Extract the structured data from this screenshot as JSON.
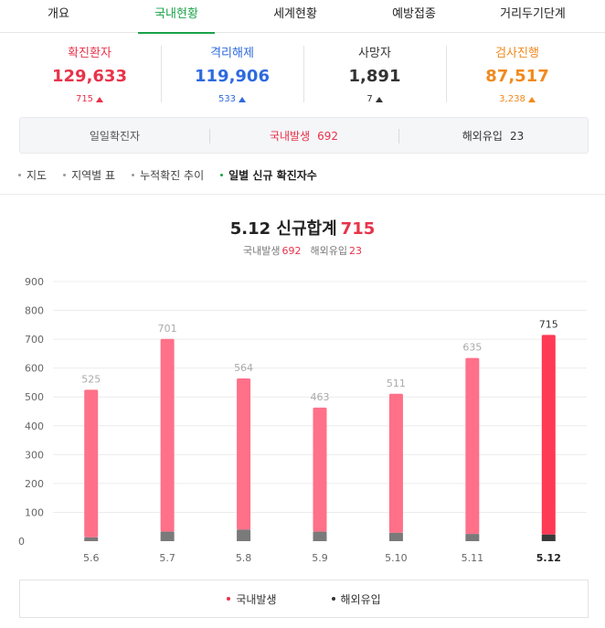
{
  "tabs": [
    {
      "label": "개요",
      "active": false
    },
    {
      "label": "국내현황",
      "active": true
    },
    {
      "label": "세계현황",
      "active": false
    },
    {
      "label": "예방접종",
      "active": false
    },
    {
      "label": "거리두기단계",
      "active": false
    }
  ],
  "stats": {
    "confirmed": {
      "label": "확진환자",
      "value": "129,633",
      "change": "715",
      "color": "#e8334a"
    },
    "released": {
      "label": "격리해제",
      "value": "119,906",
      "change": "533",
      "color": "#2e6adf"
    },
    "deaths": {
      "label": "사망자",
      "value": "1,891",
      "change": "7",
      "color": "#333333"
    },
    "testing": {
      "label": "검사진행",
      "value": "87,517",
      "change": "3,238",
      "color": "#f08a1d"
    }
  },
  "daily": {
    "label": "일일확진자",
    "domestic_label": "국내발생",
    "domestic_value": "692",
    "overseas_label": "해외유입",
    "overseas_value": "23"
  },
  "subnav": [
    {
      "label": "지도",
      "active": false
    },
    {
      "label": "지역별 표",
      "active": false
    },
    {
      "label": "누적확진 추이",
      "active": false
    },
    {
      "label": "일별 신규 확진자수",
      "active": true
    }
  ],
  "chart_header": {
    "title": "5.12 신규합계",
    "total": "715",
    "domestic_label": "국내발생",
    "domestic_value": "692",
    "overseas_label": "해외유입",
    "overseas_value": "23"
  },
  "chart_data": {
    "type": "bar",
    "stacked": true,
    "categories": [
      "5.6",
      "5.7",
      "5.8",
      "5.9",
      "5.10",
      "5.11",
      "5.12"
    ],
    "totals": [
      525,
      701,
      564,
      463,
      511,
      635,
      715
    ],
    "series": [
      {
        "name": "국내발생",
        "values": [
          512,
          668,
          524,
          430,
          482,
          610,
          692
        ],
        "color": "#ff7089",
        "highlight_color": "#ff3a55"
      },
      {
        "name": "해외유입",
        "values": [
          13,
          33,
          40,
          33,
          29,
          25,
          23
        ],
        "color": "#7a7a7a",
        "highlight_color": "#3a3a3a"
      }
    ],
    "y_ticks": [
      0,
      100,
      200,
      300,
      400,
      500,
      600,
      700,
      800,
      900
    ],
    "ylim": [
      0,
      900
    ],
    "highlight_index": 6,
    "grid": true
  },
  "legend": [
    {
      "label": "국내발생",
      "color": "#e8334a"
    },
    {
      "label": "해외유입",
      "color": "#333333"
    }
  ]
}
